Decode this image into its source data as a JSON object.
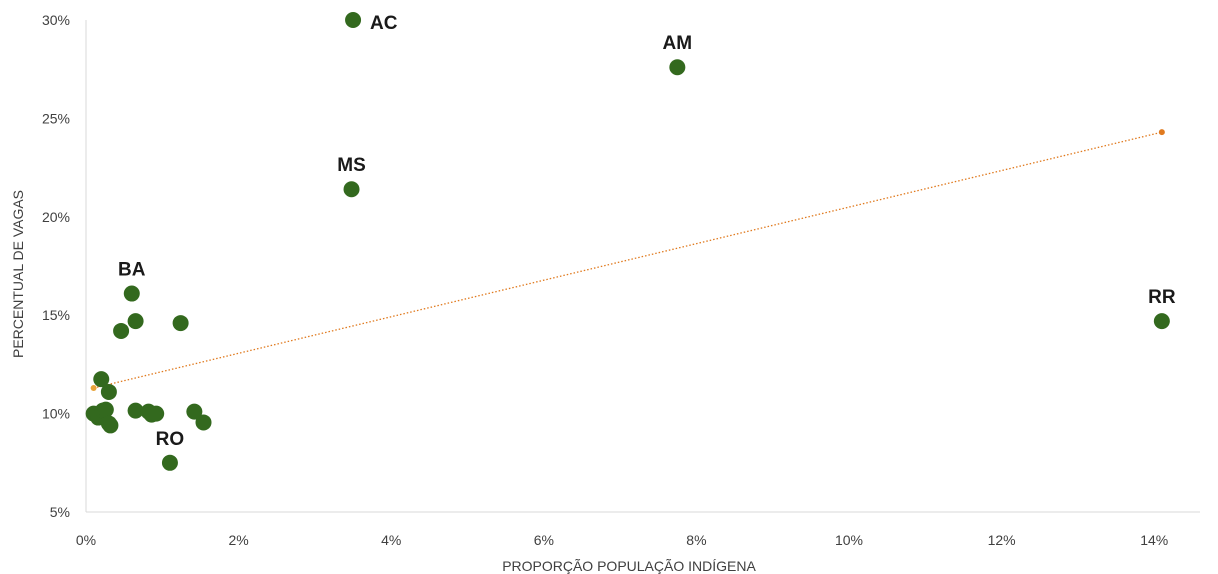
{
  "chart_data": {
    "type": "scatter",
    "xlabel": "PROPORÇÃO POPULAÇÃO INDÍGENA",
    "ylabel": "PERCENTUAL DE VAGAS",
    "xlim": [
      0,
      14.6
    ],
    "ylim": [
      5,
      30
    ],
    "x_ticks": [
      0,
      2,
      4,
      6,
      8,
      10,
      12,
      14
    ],
    "y_ticks": [
      5,
      10,
      15,
      20,
      25,
      30
    ],
    "x_tick_labels": [
      "0%",
      "2%",
      "4%",
      "6%",
      "8%",
      "10%",
      "12%",
      "14%"
    ],
    "y_tick_labels": [
      "5%",
      "10%",
      "15%",
      "20%",
      "25%",
      "30%"
    ],
    "grid": false,
    "colors": {
      "points": "#33691e",
      "trendline": "#e07a1f"
    },
    "points": [
      {
        "x": 3.5,
        "y": 30.0,
        "label": "AC"
      },
      {
        "x": 7.75,
        "y": 27.6,
        "label": "AM"
      },
      {
        "x": 3.48,
        "y": 21.4,
        "label": "MS"
      },
      {
        "x": 0.6,
        "y": 16.1,
        "label": "BA"
      },
      {
        "x": 14.1,
        "y": 14.7,
        "label": "RR"
      },
      {
        "x": 1.1,
        "y": 7.5,
        "label": "RO"
      },
      {
        "x": 0.65,
        "y": 14.7,
        "label": ""
      },
      {
        "x": 0.46,
        "y": 14.2,
        "label": ""
      },
      {
        "x": 1.24,
        "y": 14.6,
        "label": ""
      },
      {
        "x": 0.2,
        "y": 11.75,
        "label": ""
      },
      {
        "x": 0.3,
        "y": 11.1,
        "label": ""
      },
      {
        "x": 0.1,
        "y": 10.0,
        "label": ""
      },
      {
        "x": 0.16,
        "y": 9.8,
        "label": ""
      },
      {
        "x": 0.22,
        "y": 10.15,
        "label": ""
      },
      {
        "x": 0.26,
        "y": 10.2,
        "label": ""
      },
      {
        "x": 0.32,
        "y": 9.4,
        "label": ""
      },
      {
        "x": 0.3,
        "y": 9.5,
        "label": ""
      },
      {
        "x": 0.65,
        "y": 10.15,
        "label": ""
      },
      {
        "x": 0.82,
        "y": 10.1,
        "label": ""
      },
      {
        "x": 0.86,
        "y": 9.95,
        "label": ""
      },
      {
        "x": 0.92,
        "y": 10.0,
        "label": ""
      },
      {
        "x": 1.42,
        "y": 10.1,
        "label": ""
      },
      {
        "x": 1.54,
        "y": 9.55,
        "label": ""
      }
    ],
    "trendline": {
      "style": "dotted",
      "x": [
        0.1,
        14.1
      ],
      "y": [
        11.3,
        24.3
      ]
    }
  }
}
